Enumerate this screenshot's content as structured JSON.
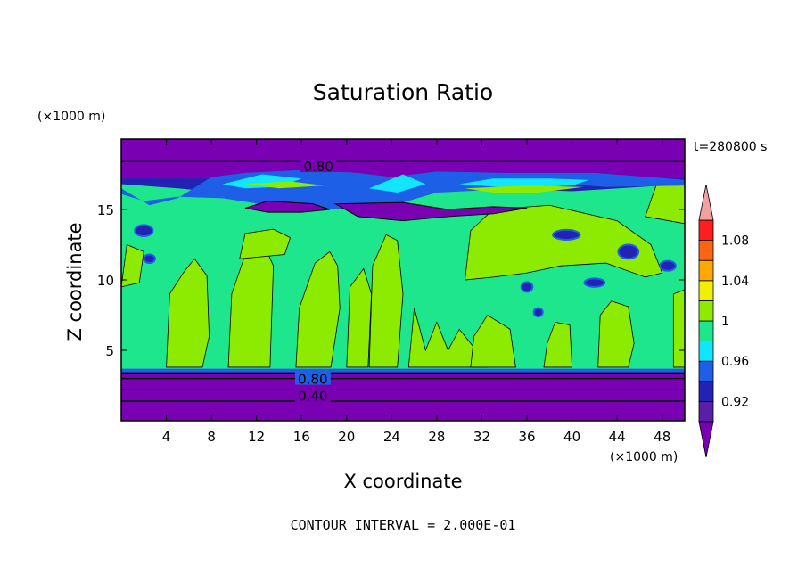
{
  "chart_data": {
    "type": "heatmap",
    "title": "Saturation Ratio",
    "xlabel": "X coordinate",
    "ylabel": "Z coordinate",
    "x_unit": "(×1000 m)",
    "y_unit": "(×1000 m)",
    "time_label": "t=280800 s",
    "footer": "CONTOUR INTERVAL = 2.000E-01",
    "xlim": [
      0,
      50
    ],
    "ylim": [
      0,
      20
    ],
    "x_ticks": [
      4,
      8,
      12,
      16,
      20,
      24,
      28,
      32,
      36,
      40,
      44,
      48
    ],
    "y_ticks": [
      5,
      10,
      15
    ],
    "contour_labels": [
      {
        "text": "0.80",
        "x": 17.5,
        "z": 18.1
      },
      {
        "text": "0.80",
        "x": 17.0,
        "z": 3.0
      },
      {
        "text": "0.40",
        "x": 17.0,
        "z": 1.8
      }
    ],
    "colorbar": {
      "levels": [
        0.9,
        0.92,
        0.94,
        0.96,
        0.98,
        1.0,
        1.02,
        1.04,
        1.06,
        1.08,
        1.1
      ],
      "tick_labels": [
        "0.92",
        "0.96",
        "1",
        "1.04",
        "1.08"
      ],
      "colors": [
        "#5a1fa8",
        "#2222b4",
        "#1e5fe8",
        "#12e6ff",
        "#1ee68c",
        "#8ceb00",
        "#f0f000",
        "#ffa800",
        "#ff6414",
        "#ff1e1e"
      ],
      "under_color": "#7a00b4",
      "over_color": "#f5a0a0"
    }
  }
}
